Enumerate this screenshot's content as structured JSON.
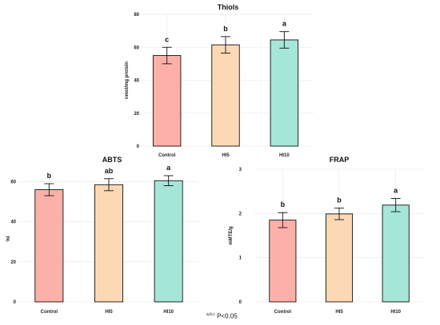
{
  "chart_data": [
    {
      "type": "bar",
      "title": "Thiols",
      "ylabel": "nmol/mg protein",
      "categories": [
        "Control",
        "HI5",
        "HI10"
      ],
      "values": [
        55,
        61.5,
        64.5
      ],
      "errors": [
        5,
        5,
        5
      ],
      "letters": [
        "c",
        "b",
        "a"
      ],
      "colors": [
        "#fbb0a8",
        "#fcd9b4",
        "#a6e6d8"
      ],
      "ylim": [
        0,
        80
      ],
      "yticks": [
        0,
        20,
        40,
        60,
        80
      ],
      "grid": true
    },
    {
      "type": "bar",
      "title": "ABTS",
      "ylabel": "%I",
      "categories": [
        "Control",
        "HI5",
        "HI10"
      ],
      "values": [
        56,
        58.5,
        60.5
      ],
      "errors": [
        3,
        3,
        2.5
      ],
      "letters": [
        "b",
        "ab",
        "a"
      ],
      "colors": [
        "#fbb0a8",
        "#fcd9b4",
        "#a6e6d8"
      ],
      "ylim": [
        0,
        63
      ],
      "yticks": [
        0,
        20,
        40,
        60
      ],
      "grid": true
    },
    {
      "type": "bar",
      "title": "FRAP",
      "ylabel": "mMTE/g",
      "categories": [
        "Control",
        "HI5",
        "HI10"
      ],
      "values": [
        1.85,
        1.99,
        2.19
      ],
      "errors": [
        0.17,
        0.13,
        0.15
      ],
      "letters": [
        "b",
        "b",
        "a"
      ],
      "colors": [
        "#fbb0a8",
        "#fcd9b4",
        "#a6e6d8"
      ],
      "ylim": [
        0,
        3
      ],
      "yticks": [
        0,
        1,
        2,
        3
      ],
      "grid": true
    }
  ],
  "footnote": {
    "superscript": "a,b,c",
    "text": " P<0.05"
  }
}
